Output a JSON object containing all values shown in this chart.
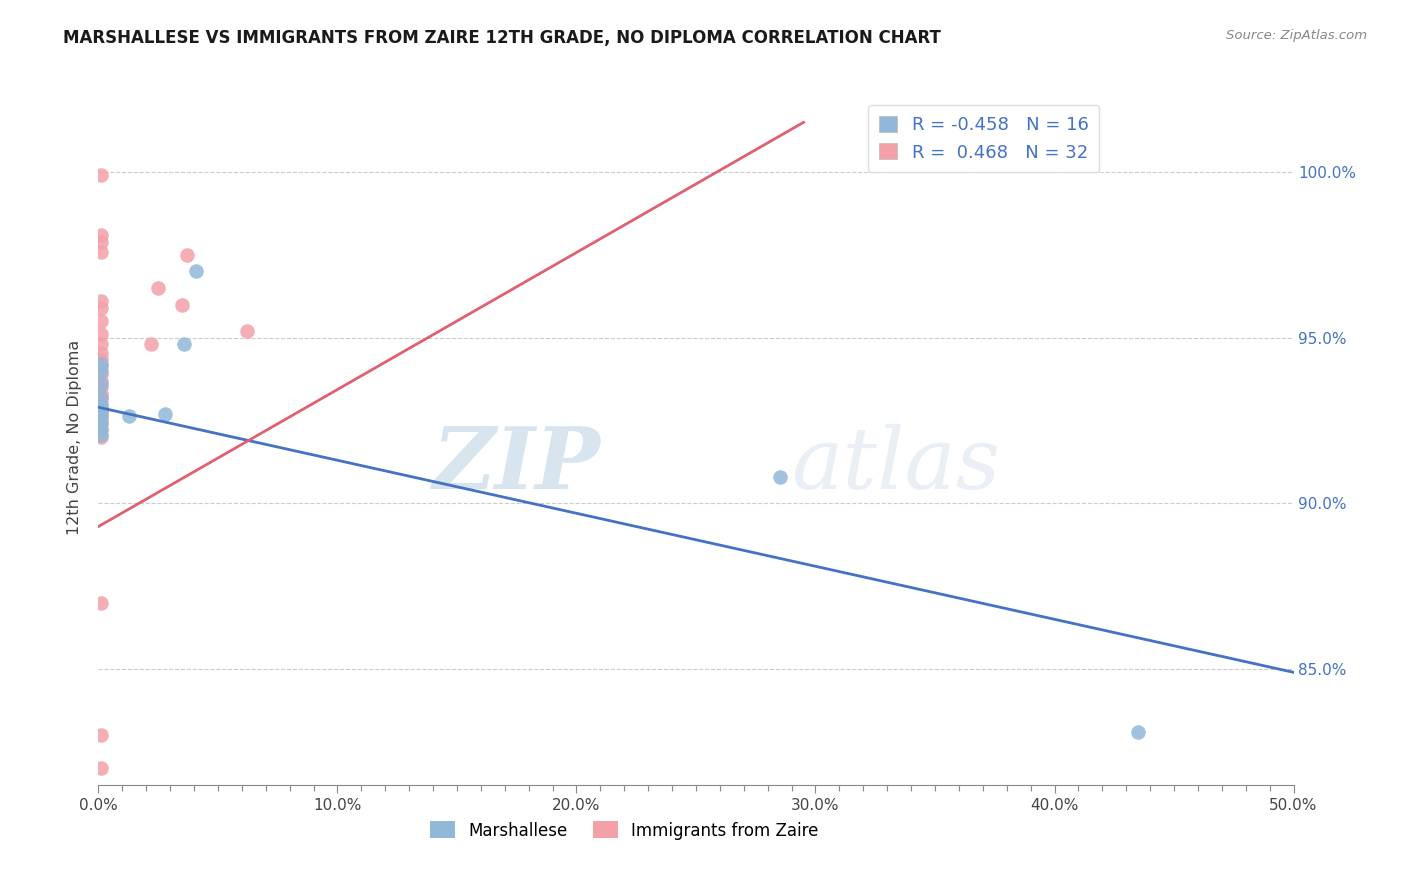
{
  "title": "MARSHALLESE VS IMMIGRANTS FROM ZAIRE 12TH GRADE, NO DIPLOMA CORRELATION CHART",
  "source_text": "Source: ZipAtlas.com",
  "ylabel": "12th Grade, No Diploma",
  "xlim": [
    0.0,
    0.5
  ],
  "ylim": [
    0.815,
    1.025
  ],
  "xtick_labels": [
    "0.0%",
    "",
    "",
    "",
    "",
    "",
    "",
    "",
    "",
    "",
    "10.0%",
    "",
    "",
    "",
    "",
    "",
    "",
    "",
    "",
    "",
    "20.0%",
    "",
    "",
    "",
    "",
    "",
    "",
    "",
    "",
    "",
    "30.0%",
    "",
    "",
    "",
    "",
    "",
    "",
    "",
    "",
    "",
    "40.0%",
    "",
    "",
    "",
    "",
    "",
    "",
    "",
    "",
    "",
    "50.0%"
  ],
  "xtick_vals": [
    0.0,
    0.01,
    0.02,
    0.03,
    0.04,
    0.05,
    0.06,
    0.07,
    0.08,
    0.09,
    0.1,
    0.11,
    0.12,
    0.13,
    0.14,
    0.15,
    0.16,
    0.17,
    0.18,
    0.19,
    0.2,
    0.21,
    0.22,
    0.23,
    0.24,
    0.25,
    0.26,
    0.27,
    0.28,
    0.29,
    0.3,
    0.31,
    0.32,
    0.33,
    0.34,
    0.35,
    0.36,
    0.37,
    0.38,
    0.39,
    0.4,
    0.41,
    0.42,
    0.43,
    0.44,
    0.45,
    0.46,
    0.47,
    0.48,
    0.49,
    0.5
  ],
  "xtick_major_labels": [
    "0.0%",
    "10.0%",
    "20.0%",
    "30.0%",
    "40.0%",
    "50.0%"
  ],
  "xtick_major_vals": [
    0.0,
    0.1,
    0.2,
    0.3,
    0.4,
    0.5
  ],
  "ytick_labels": [
    "85.0%",
    "90.0%",
    "95.0%",
    "100.0%"
  ],
  "ytick_vals": [
    0.85,
    0.9,
    0.95,
    1.0
  ],
  "grid_color": "#cccccc",
  "background_color": "#ffffff",
  "marshallese_color": "#91b8d9",
  "zaire_color": "#f4a0a8",
  "marshallese_line_color": "#4472c4",
  "zaire_line_color": "#e06070",
  "r_marshallese": -0.458,
  "n_marshallese": 16,
  "r_zaire": 0.468,
  "n_zaire": 32,
  "watermark_zip": "ZIP",
  "watermark_atlas": "atlas",
  "marshallese_x": [
    0.001,
    0.001,
    0.001,
    0.001,
    0.001,
    0.001,
    0.001,
    0.001,
    0.001,
    0.001,
    0.013,
    0.028,
    0.036,
    0.041,
    0.285,
    0.435
  ],
  "marshallese_y": [
    0.9205,
    0.9225,
    0.9245,
    0.9265,
    0.928,
    0.9295,
    0.932,
    0.936,
    0.94,
    0.942,
    0.9265,
    0.927,
    0.948,
    0.97,
    0.908,
    0.831
  ],
  "zaire_x": [
    0.001,
    0.001,
    0.001,
    0.001,
    0.001,
    0.001,
    0.001,
    0.001,
    0.001,
    0.001,
    0.001,
    0.001,
    0.001,
    0.001,
    0.001,
    0.001,
    0.001,
    0.001,
    0.001,
    0.022,
    0.025,
    0.035,
    0.037,
    0.062,
    0.001,
    0.001,
    0.001,
    0.001,
    0.001,
    0.001,
    0.001,
    0.001
  ],
  "zaire_y": [
    0.92,
    0.922,
    0.924,
    0.926,
    0.9275,
    0.9285,
    0.93,
    0.9315,
    0.933,
    0.935,
    0.937,
    0.939,
    0.9415,
    0.9435,
    0.9455,
    0.948,
    0.951,
    0.955,
    0.961,
    0.948,
    0.965,
    0.96,
    0.975,
    0.952,
    0.87,
    0.959,
    0.976,
    0.979,
    0.981,
    0.999,
    0.83,
    0.82
  ],
  "marshallese_line_x": [
    0.0,
    0.5
  ],
  "marshallese_line_y": [
    0.929,
    0.849
  ],
  "zaire_line_x": [
    0.0,
    0.295
  ],
  "zaire_line_y": [
    0.893,
    1.015
  ]
}
